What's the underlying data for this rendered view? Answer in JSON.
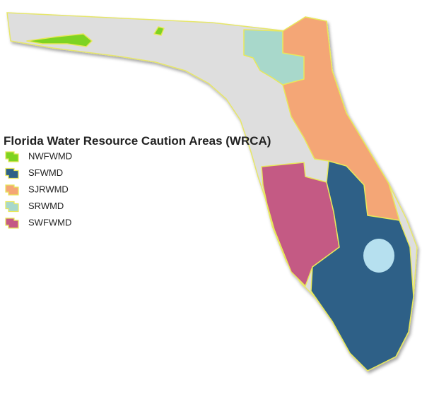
{
  "title": "Florida Water Resource Caution Areas (WRCA)",
  "legend": [
    {
      "label": "NWFWMD",
      "color": "#7ed321"
    },
    {
      "label": "SFWMD",
      "color": "#2e6187"
    },
    {
      "label": "SJRWMD",
      "color": "#f4a676"
    },
    {
      "label": "SRWMD",
      "color": "#a8d8cb"
    },
    {
      "label": "SWFWMD",
      "color": "#c45a84"
    }
  ]
}
